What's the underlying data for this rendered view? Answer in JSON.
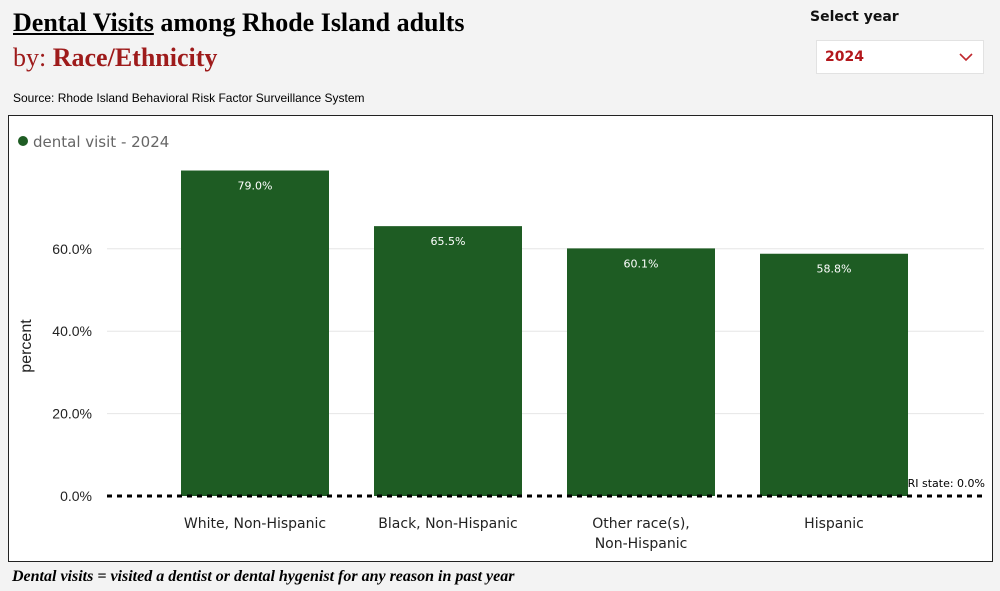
{
  "header": {
    "title_part1": "Dental Visits",
    "title_part2": " among Rhode Island adults",
    "subtitle_prefix": "by: ",
    "subtitle_dimension": "Race/Ethnicity",
    "source": "Source: Rhode Island Behavioral Risk Factor Surveillance System"
  },
  "year_filter": {
    "label": "Select year",
    "selected": "2024",
    "chevron_icon": "chevron-down-icon"
  },
  "footnote": "Dental visits = visited a dentist or dental hygenist for any reason in past year",
  "colors": {
    "bar": "#1e5c23",
    "accent": "#b3171c",
    "title_secondary": "#9e1b1b"
  },
  "chart_data": {
    "type": "bar",
    "legend": {
      "label": "dental visit - 2024",
      "placement": "top-left"
    },
    "categories": [
      [
        "White, Non-Hispanic"
      ],
      [
        "Black, Non-Hispanic"
      ],
      [
        "Other race(s),",
        "Non-Hispanic"
      ],
      [
        "Hispanic"
      ]
    ],
    "series": [
      {
        "name": "dental visit - 2024",
        "values": [
          79.0,
          65.5,
          60.1,
          58.8
        ],
        "labels": [
          "79.0%",
          "65.5%",
          "60.1%",
          "58.8%"
        ]
      }
    ],
    "ylabel": "percent",
    "ylim": [
      0,
      82
    ],
    "yticks": [
      {
        "value": 0,
        "label": "0.0%"
      },
      {
        "value": 20,
        "label": "20.0%"
      },
      {
        "value": 40,
        "label": "40.0%"
      },
      {
        "value": 60,
        "label": "60.0%"
      }
    ],
    "grid": true,
    "reference_line": {
      "value": 0,
      "label": "RI state: 0.0%",
      "style": "dashed"
    }
  }
}
